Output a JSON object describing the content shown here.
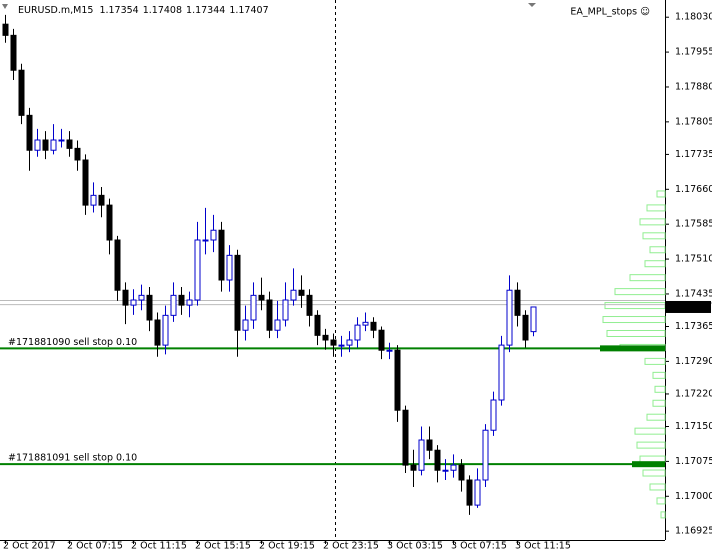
{
  "chart_data": {
    "type": "candlestick",
    "title": "EURUSD.m,M15",
    "indicator": "EA_MPL_stops ☺",
    "categories": [
      "2 Oct 2017",
      null,
      null,
      null,
      null,
      null,
      null,
      null,
      "2 Oct 07:15",
      null,
      null,
      null,
      null,
      null,
      null,
      null,
      "2 Oct 11:15",
      null,
      null,
      null,
      null,
      null,
      null,
      null,
      "2 Oct 15:15",
      null,
      null,
      null,
      null,
      null,
      null,
      null,
      "2 Oct 19:15",
      null,
      null,
      null,
      null,
      null,
      null,
      null,
      "2 Oct 23:15",
      null,
      null,
      null,
      null,
      null,
      null,
      null,
      "3 Oct 03:15",
      null,
      null,
      null,
      null,
      null,
      null,
      null,
      "3 Oct 07:15",
      null,
      null,
      null,
      null,
      null,
      null,
      null,
      "3 Oct 11:15",
      null,
      null
    ],
    "open": [
      1.18015,
      1.17991,
      1.17916,
      1.17819,
      1.17744,
      1.17766,
      1.17744,
      1.17766,
      1.17766,
      1.17748,
      1.17723,
      1.17626,
      1.17647,
      1.17626,
      1.17551,
      1.17443,
      1.17411,
      1.17422,
      1.17432,
      1.17379,
      1.17325,
      1.17389,
      1.17432,
      1.17411,
      1.17422,
      1.17551,
      1.17551,
      1.17572,
      1.17465,
      1.17518,
      1.17357,
      1.17379,
      1.17432,
      1.17422,
      1.17357,
      1.17379,
      1.17422,
      1.17443,
      1.17432,
      1.17389,
      1.17346,
      1.17336,
      1.17325,
      1.17325,
      1.17336,
      1.17368,
      1.17374,
      1.17357,
      1.17314,
      1.17314,
      1.17185,
      1.17067,
      1.17056,
      1.17121,
      1.17099,
      1.17056,
      1.17056,
      1.17067,
      1.17035,
      1.16981,
      1.17035,
      1.17142,
      1.17207,
      1.17325,
      1.17443,
      1.17389,
      1.17354
    ],
    "high": [
      1.18035,
      1.18005,
      1.1793,
      1.17835,
      1.1779,
      1.17785,
      1.178,
      1.1779,
      1.17785,
      1.17765,
      1.17735,
      1.17675,
      1.17665,
      1.1764,
      1.1756,
      1.1746,
      1.17445,
      1.17455,
      1.1745,
      1.17395,
      1.1741,
      1.1746,
      1.1745,
      1.1744,
      1.1759,
      1.1762,
      1.17605,
      1.1759,
      1.1754,
      1.1753,
      1.1741,
      1.1746,
      1.1747,
      1.1744,
      1.1742,
      1.1746,
      1.1749,
      1.17475,
      1.17445,
      1.174,
      1.1736,
      1.1735,
      1.17345,
      1.17355,
      1.17385,
      1.17395,
      1.17385,
      1.17365,
      1.1733,
      1.17325,
      1.17195,
      1.171,
      1.1715,
      1.1715,
      1.1711,
      1.1708,
      1.1709,
      1.1708,
      1.17045,
      1.1706,
      1.17155,
      1.17225,
      1.17345,
      1.17475,
      1.1746,
      1.174,
      1.17408
    ],
    "low": [
      1.17975,
      1.17895,
      1.178,
      1.177,
      1.1773,
      1.17725,
      1.17735,
      1.1775,
      1.1773,
      1.177,
      1.17605,
      1.1761,
      1.176,
      1.1752,
      1.1742,
      1.1737,
      1.1739,
      1.174,
      1.17355,
      1.173,
      1.17305,
      1.17375,
      1.1739,
      1.17385,
      1.1741,
      1.1752,
      1.17525,
      1.1744,
      1.1744,
      1.173,
      1.17335,
      1.1736,
      1.174,
      1.1734,
      1.1734,
      1.17365,
      1.1741,
      1.17405,
      1.17365,
      1.17325,
      1.17315,
      1.173,
      1.173,
      1.1731,
      1.1732,
      1.17355,
      1.1734,
      1.17295,
      1.17295,
      1.1716,
      1.1705,
      1.1702,
      1.17045,
      1.1708,
      1.1703,
      1.17035,
      1.1704,
      1.1701,
      1.1696,
      1.16975,
      1.1702,
      1.1713,
      1.17195,
      1.1731,
      1.17365,
      1.1732,
      1.17344
    ],
    "close": [
      1.17991,
      1.17916,
      1.17819,
      1.17744,
      1.17766,
      1.17744,
      1.17766,
      1.17766,
      1.17748,
      1.17723,
      1.17626,
      1.17647,
      1.17626,
      1.17551,
      1.17443,
      1.17411,
      1.17422,
      1.17432,
      1.17379,
      1.17325,
      1.17389,
      1.17432,
      1.17411,
      1.17422,
      1.17551,
      1.17551,
      1.17572,
      1.17465,
      1.17518,
      1.17357,
      1.17379,
      1.17432,
      1.17422,
      1.17357,
      1.17379,
      1.17422,
      1.17443,
      1.17432,
      1.17389,
      1.17346,
      1.17336,
      1.17325,
      1.17325,
      1.17336,
      1.17368,
      1.17374,
      1.17357,
      1.17314,
      1.17314,
      1.17185,
      1.17067,
      1.17056,
      1.17121,
      1.17099,
      1.17056,
      1.17056,
      1.17067,
      1.17035,
      1.16981,
      1.17035,
      1.17142,
      1.17207,
      1.17325,
      1.17443,
      1.17389,
      1.17336,
      1.17407
    ],
    "up_color": "#0000cc",
    "down_color": "#000000",
    "ylim": [
      1.16906,
      1.18067
    ],
    "yticks": [
      {
        "value": 1.1803,
        "label": "1.18030"
      },
      1.17955,
      {
        "value": 1.1788,
        "label": "1.17880"
      },
      1.17805,
      1.17735,
      {
        "value": 1.1766,
        "label": "1.17660"
      },
      1.17585,
      {
        "value": 1.1751,
        "label": "1.17510"
      },
      1.17435,
      1.17365,
      {
        "value": 1.1729,
        "label": "1.17290"
      },
      {
        "value": 1.1722,
        "label": "1.17220"
      },
      {
        "value": 1.1715,
        "label": "1.17150"
      },
      1.17075,
      {
        "value": 1.17,
        "label": "1.17000"
      },
      1.16925
    ],
    "price_lines": [
      1.17421,
      1.17412
    ],
    "orders": [
      {
        "label": "#171881090 sell stop 0.10",
        "price": 1.17318,
        "size": 65
      },
      {
        "label": "#171881091 sell stop 0.10",
        "price": 1.17069,
        "size": 33
      }
    ],
    "order_color": "#008000",
    "profile": {
      "color": "#90ee90",
      "prices": [
        1.1765,
        1.1762,
        1.1759,
        1.1756,
        1.1753,
        1.175,
        1.1747,
        1.1744,
        1.1741,
        1.1738,
        1.1735,
        1.1732,
        1.1729,
        1.1726,
        1.1723,
        1.172,
        1.1717,
        1.1714,
        1.1711,
        1.1708,
        1.1705,
        1.1702,
        1.1699,
        1.1696
      ],
      "values": [
        8,
        18,
        25,
        22,
        15,
        20,
        35,
        50,
        60,
        62,
        58,
        45,
        20,
        12,
        10,
        12,
        18,
        30,
        28,
        25,
        22,
        15,
        8,
        4
      ]
    }
  }
}
